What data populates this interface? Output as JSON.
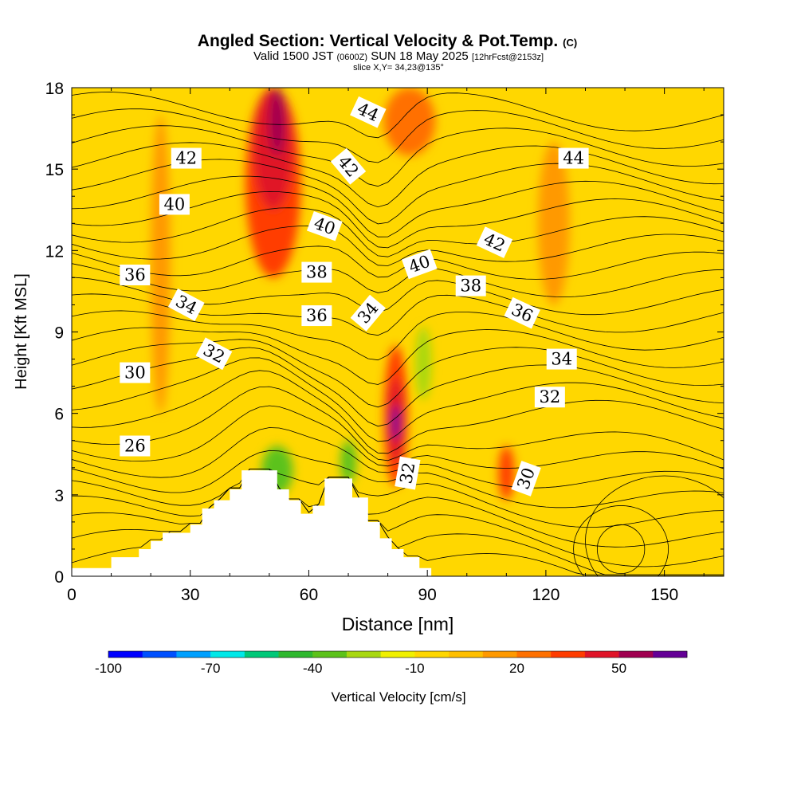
{
  "chart_data": {
    "type": "heatmap",
    "title": {
      "main": "Angled Section: Vertical Velocity & Pot.Temp.",
      "main_suffix": "(C)",
      "line2_a": "Valid 1500 JST",
      "line2_b": "(0600Z)",
      "line2_c": "SUN 18 May 2025",
      "line2_d": "[12hrFcst@2153z]",
      "line3": "slice X,Y= 34,23@135°"
    },
    "xlabel": "Distance [nm]",
    "ylabel": "Height [Kft MSL]",
    "xlim": [
      0,
      165
    ],
    "ylim": [
      0,
      18
    ],
    "xticks": [
      "0",
      "30",
      "60",
      "90",
      "120",
      "150"
    ],
    "yticks": [
      "0",
      "3",
      "6",
      "9",
      "12",
      "15",
      "18"
    ],
    "colorbar": {
      "label": "Vertical Velocity [cm/s]",
      "tick_labels": [
        "-100",
        "-70",
        "-40",
        "-10",
        "20",
        "50"
      ],
      "range": [
        -100,
        70
      ],
      "colors": [
        "#0000ff",
        "#0050ff",
        "#00a0ff",
        "#00e8e8",
        "#00c878",
        "#2eb82e",
        "#5cc21a",
        "#a8d810",
        "#f0f000",
        "#ffd700",
        "#ffbf00",
        "#ff9900",
        "#ff7000",
        "#ff3c00",
        "#e01428",
        "#a00050",
        "#640096"
      ]
    },
    "isotherm_labels": [
      {
        "text": "26",
        "x": 16,
        "y": 4.8,
        "r": 0
      },
      {
        "text": "30",
        "x": 16,
        "y": 7.5,
        "r": 0
      },
      {
        "text": "32",
        "x": 36,
        "y": 8.2,
        "r": 28
      },
      {
        "text": "34",
        "x": 29,
        "y": 10.0,
        "r": 28
      },
      {
        "text": "36",
        "x": 16,
        "y": 11.1,
        "r": 0
      },
      {
        "text": "40",
        "x": 26,
        "y": 13.7,
        "r": 0
      },
      {
        "text": "42",
        "x": 29,
        "y": 15.4,
        "r": 0
      },
      {
        "text": "36",
        "x": 62,
        "y": 9.6,
        "r": 0
      },
      {
        "text": "38",
        "x": 62,
        "y": 11.2,
        "r": 0
      },
      {
        "text": "40",
        "x": 64,
        "y": 12.9,
        "r": 20
      },
      {
        "text": "42",
        "x": 70,
        "y": 15.1,
        "r": 50
      },
      {
        "text": "44",
        "x": 75,
        "y": 17.1,
        "r": 25
      },
      {
        "text": "34",
        "x": 75,
        "y": 9.7,
        "r": -50
      },
      {
        "text": "40",
        "x": 88,
        "y": 11.5,
        "r": -20
      },
      {
        "text": "32",
        "x": 85,
        "y": 3.8,
        "r": -80
      },
      {
        "text": "38",
        "x": 101,
        "y": 10.7,
        "r": 0
      },
      {
        "text": "42",
        "x": 107,
        "y": 12.3,
        "r": 25
      },
      {
        "text": "36",
        "x": 114,
        "y": 9.7,
        "r": 25
      },
      {
        "text": "34",
        "x": 124,
        "y": 8.0,
        "r": 0
      },
      {
        "text": "32",
        "x": 121,
        "y": 6.6,
        "r": 0
      },
      {
        "text": "30",
        "x": 115,
        "y": 3.6,
        "r": -70
      },
      {
        "text": "44",
        "x": 127,
        "y": 15.4,
        "r": 0
      }
    ],
    "velocity_cells": [
      {
        "x": [
          44,
          58
        ],
        "y": [
          11,
          18
        ],
        "v": 30
      },
      {
        "x": [
          46,
          56
        ],
        "y": [
          13.5,
          18
        ],
        "v": 40
      },
      {
        "x": [
          50,
          54
        ],
        "y": [
          15.5,
          18
        ],
        "v": 50
      },
      {
        "x": [
          79,
          85
        ],
        "y": [
          3.3,
          8.5
        ],
        "v": 30
      },
      {
        "x": [
          80,
          84
        ],
        "y": [
          4.2,
          7.3
        ],
        "v": 45
      },
      {
        "x": [
          81,
          83
        ],
        "y": [
          5,
          6.3
        ],
        "v": 60
      },
      {
        "x": [
          108,
          112
        ],
        "y": [
          2.8,
          4.8
        ],
        "v": 30
      },
      {
        "x": [
          79,
          92
        ],
        "y": [
          15.5,
          18
        ],
        "v": 20
      },
      {
        "x": [
          48,
          56
        ],
        "y": [
          3,
          4.8
        ],
        "v": -40
      },
      {
        "x": [
          68,
          72
        ],
        "y": [
          3.4,
          5
        ],
        "v": -40
      },
      {
        "x": [
          87,
          91
        ],
        "y": [
          6.5,
          9.2
        ],
        "v": -30
      },
      {
        "x": [
          20,
          25
        ],
        "y": [
          6,
          17
        ],
        "v": 10
      },
      {
        "x": [
          118,
          126
        ],
        "y": [
          10,
          16
        ],
        "v": 10
      }
    ],
    "terrain_kft": [
      [
        0,
        0.3
      ],
      [
        10,
        0.3
      ],
      [
        10,
        0.7
      ],
      [
        17,
        0.7
      ],
      [
        17,
        1.0
      ],
      [
        20,
        1.0
      ],
      [
        20,
        1.3
      ],
      [
        23,
        1.3
      ],
      [
        23,
        1.6
      ],
      [
        30,
        1.6
      ],
      [
        30,
        1.9
      ],
      [
        33,
        1.9
      ],
      [
        33,
        2.5
      ],
      [
        36,
        2.5
      ],
      [
        36,
        2.8
      ],
      [
        40,
        2.8
      ],
      [
        40,
        3.2
      ],
      [
        43,
        3.2
      ],
      [
        43,
        3.9
      ],
      [
        52,
        3.9
      ],
      [
        52,
        3.2
      ],
      [
        55,
        3.2
      ],
      [
        55,
        2.8
      ],
      [
        58,
        2.8
      ],
      [
        58,
        2.3
      ],
      [
        61,
        2.3
      ],
      [
        61,
        2.6
      ],
      [
        64,
        2.6
      ],
      [
        64,
        3.6
      ],
      [
        71,
        3.6
      ],
      [
        71,
        2.9
      ],
      [
        75,
        2.9
      ],
      [
        75,
        2.0
      ],
      [
        78,
        2.0
      ],
      [
        78,
        1.4
      ],
      [
        81,
        1.4
      ],
      [
        81,
        1.0
      ],
      [
        84,
        1.0
      ],
      [
        84,
        0.7
      ],
      [
        88,
        0.7
      ],
      [
        88,
        0.3
      ],
      [
        91,
        0.3
      ],
      [
        91,
        0
      ]
    ]
  }
}
